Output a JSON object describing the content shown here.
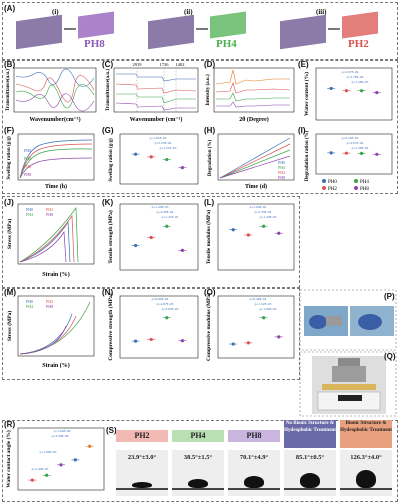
{
  "panel_labels": {
    "A": "(A)",
    "B": "(B)",
    "C": "(C)",
    "D": "(D)",
    "E": "(E)",
    "F": "(F)",
    "G": "(G)",
    "H": "(H)",
    "I": "(I)",
    "J": "(J)",
    "K": "(K)",
    "L": "(L)",
    "M": "(M)",
    "N": "(N)",
    "O": "(O)",
    "P": "(P)",
    "Q": "(Q)",
    "R": "(R)",
    "S": "(S)"
  },
  "panelA": {
    "sub": [
      {
        "roman": "(i)",
        "tag": "PH8",
        "color": "#8e5ab8"
      },
      {
        "roman": "(ii)",
        "tag": "PH4",
        "color": "#4caf50"
      },
      {
        "roman": "(iii)",
        "tag": "PH2",
        "color": "#d9534f"
      }
    ]
  },
  "axes": {
    "B_x": "Wavenumber(cm⁻¹)",
    "B_y": "Transmittance(a.u.)",
    "C_x": "Wavenumber (cm⁻¹)",
    "C_y": "Transmittance(a.u.)",
    "D_x": "2θ (Degree)",
    "D_y": "Intensity (a.u.)",
    "E_y": "Water content (%)",
    "F_x": "Time (h)",
    "F_y": "Swelling ration (g/g)",
    "G_y": "Swelling ration (g/g)",
    "H_x": "Time (d)",
    "H_y": "Degradation (%)",
    "I_y": "Degradation ration (%)",
    "J_x": "Strain (%)",
    "J_y": "Stress (MPa)",
    "K_y": "Tensile strength (MPa)",
    "L_y": "Tensile modulus (MPa)",
    "M_x": "Strain (%)",
    "M_y": "Stress (MPa)",
    "N_y": "Compressive strength (MPa)",
    "O_y": "Compressive modulus (MPa)",
    "R_y": "Water contact angle (%)"
  },
  "C_ticks": [
    "2919",
    "1726",
    "1402"
  ],
  "E_pvals": [
    "p=2.97E-04",
    "p=3.76E-04",
    "p=1.58E-05"
  ],
  "G_pvals": [
    "p=1.81E-04",
    "p=5.23E-04",
    "p=1.51E-03"
  ],
  "I_pvals": [
    "p=4.16E-05",
    "p=4.07E-04",
    "p=1.28E-04"
  ],
  "K_pvals": [
    "p=1.20E-03",
    "p=4.30E-04",
    "p=1.41E-05"
  ],
  "L_pvals": [
    "p=1.04E-02",
    "p=2.33E-02",
    "p=1.29E-02"
  ],
  "N_pvals": [
    "p=8.64E-04",
    "p=4.97E-03",
    "p=3.85E-03"
  ],
  "O_pvals": [
    "p=9.40E-04",
    "p=1.52E-03",
    "p=1.06E-03"
  ],
  "R_pvals": [
    "p=1.94E-09",
    "p=3.29E-08",
    "p=1.09E-05",
    "p=2.40E-05"
  ],
  "legend": {
    "ph0": "PH0",
    "ph4": "PH4",
    "ph2": "PH2",
    "ph8": "PH8"
  },
  "curve_labels": {
    "ph0": "PH0",
    "ph2": "PH2",
    "ph4": "PH4",
    "ph8": "PH8"
  },
  "S": {
    "items": [
      {
        "header": "PH2",
        "value": "23.9°±3.0°",
        "header_bg": "#f2b8b3"
      },
      {
        "header": "PH4",
        "value": "38.5°±1.5°",
        "header_bg": "#b9e0b3"
      },
      {
        "header": "PH8",
        "value": "70.1°±4.9°",
        "header_bg": "#c9b5e0"
      },
      {
        "header": "No Bionic Structure & Hydrophobic Treatment",
        "value": "85.1°±0.5°",
        "header_bg": "#6a6aa8"
      },
      {
        "header": "Bionic Structure & Hydrophobic Treatment",
        "value": "126.3°±4.0°",
        "header_bg": "#e9a07e"
      }
    ]
  },
  "colors": {
    "ph0": "#3b6fb6",
    "ph2": "#d9534f",
    "ph4": "#3aa34a",
    "ph8": "#8e44ad"
  }
}
